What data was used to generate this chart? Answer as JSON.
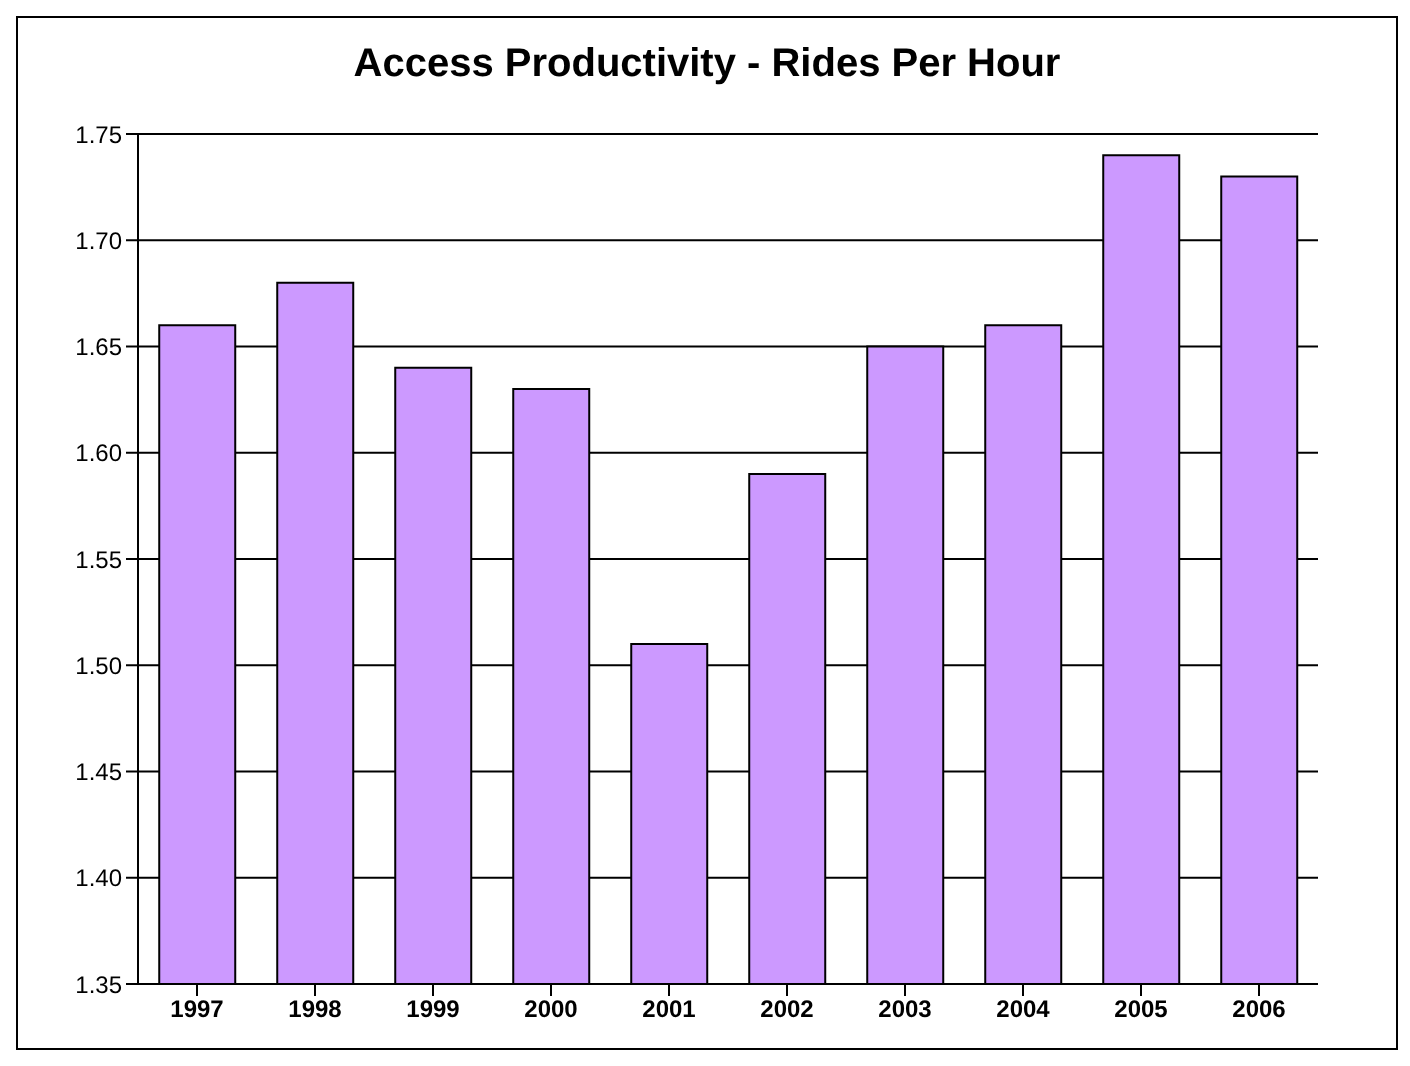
{
  "chart_data": {
    "type": "bar",
    "title": "Access Productivity - Rides Per Hour",
    "categories": [
      "1997",
      "1998",
      "1999",
      "2000",
      "2001",
      "2002",
      "2003",
      "2004",
      "2005",
      "2006"
    ],
    "values": [
      1.66,
      1.68,
      1.64,
      1.63,
      1.51,
      1.59,
      1.65,
      1.66,
      1.74,
      1.73
    ],
    "color": "#cc99ff",
    "ylim": [
      1.35,
      1.75
    ],
    "yticks": [
      1.35,
      {
        "value": 1.4,
        "label": "1.40"
      },
      1.45,
      {
        "value": 1.5,
        "label": "1.50"
      },
      1.55,
      {
        "value": 1.6,
        "label": "1.60"
      },
      1.65,
      {
        "value": 1.7,
        "label": "1.70"
      },
      1.75
    ],
    "grid": "y"
  }
}
